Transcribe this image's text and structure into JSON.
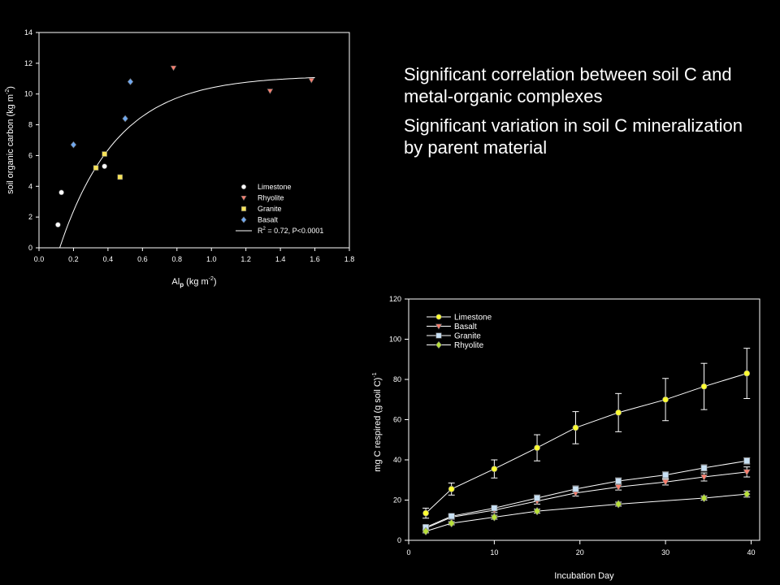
{
  "notes": [
    "Significant correlation between soil C and metal-organic complexes",
    "Significant variation in soil C mineralization by parent material"
  ],
  "chart_data": [
    {
      "type": "scatter",
      "xlabel": "Al",
      "xlabel_sub": "p",
      "xlabel_unit": " (kg m",
      "xlabel_sup": "-2",
      "xlabel_close": ")",
      "ylabel": "soil organic carbon (kg m",
      "ylabel_sup": "-2",
      "ylabel_close": ")",
      "xlim": [
        0,
        1.8
      ],
      "ylim": [
        0,
        14
      ],
      "xticks": [
        "0.0",
        "0.2",
        "0.4",
        "0.6",
        "0.8",
        "1.0",
        "1.2",
        "1.4",
        "1.6",
        "1.8"
      ],
      "yticks": [
        "0",
        "2",
        "4",
        "6",
        "8",
        "10",
        "12",
        "14"
      ],
      "legend_position": "bottom-right",
      "series": [
        {
          "name": "Limestone",
          "marker": "circle",
          "color": "#ffffff",
          "points": [
            [
              0.11,
              1.5
            ],
            [
              0.13,
              3.6
            ],
            [
              0.38,
              5.3
            ]
          ]
        },
        {
          "name": "Rhyolite",
          "marker": "triangle-down",
          "color": "#ff7f6e",
          "points": [
            [
              0.78,
              11.7
            ],
            [
              1.34,
              10.2
            ],
            [
              1.58,
              10.9
            ]
          ]
        },
        {
          "name": "Granite",
          "marker": "square",
          "color": "#f7e35a",
          "points": [
            [
              0.33,
              5.2
            ],
            [
              0.38,
              6.1
            ],
            [
              0.47,
              4.6
            ]
          ]
        },
        {
          "name": "Basalt",
          "marker": "diamond",
          "color": "#6fa8f0",
          "points": [
            [
              0.2,
              6.7
            ],
            [
              0.5,
              8.4
            ],
            [
              0.53,
              10.8
            ]
          ]
        }
      ],
      "fit": {
        "label": "R",
        "label_sup": "2",
        "label_rest": " = 0.72, P<0.0001",
        "asymptote": 11.2,
        "x0": 0.12,
        "rate": 3.0,
        "x_end": 1.6
      }
    },
    {
      "type": "line",
      "xlabel": "Incubation Day",
      "ylabel": "mg C respired (g soil C)",
      "ylabel_sup": "-1",
      "xlim": [
        0,
        41
      ],
      "ylim": [
        0,
        120
      ],
      "xticks": [
        "0",
        "10",
        "20",
        "30",
        "40"
      ],
      "yticks": [
        "0",
        "20",
        "40",
        "60",
        "80",
        "100",
        "120"
      ],
      "legend_position": "top-left",
      "x": [
        2,
        5,
        10,
        15,
        19.5,
        24.5,
        30,
        34.5,
        39.5
      ],
      "series": [
        {
          "name": "Limestone",
          "marker": "circle",
          "color": "#ffff33",
          "values": [
            13.5,
            25.5,
            35.5,
            46,
            56,
            63.5,
            70,
            76.5,
            83
          ],
          "errors": [
            2.5,
            3,
            4.5,
            6.5,
            8,
            9.5,
            10.5,
            11.5,
            12.5
          ]
        },
        {
          "name": "Basalt",
          "marker": "triangle-down",
          "color": "#ff7f6e",
          "values": [
            6,
            11.5,
            15,
            19.5,
            23.5,
            26.5,
            29,
            31.5,
            34
          ],
          "errors": [
            1,
            1,
            1.2,
            1.5,
            1.5,
            1.5,
            1.5,
            2,
            2.5
          ]
        },
        {
          "name": "Granite",
          "marker": "square",
          "color": "#c8e0f4",
          "values": [
            6.5,
            12,
            16,
            21,
            25.5,
            29.5,
            32.5,
            36,
            39.5
          ],
          "errors": [
            1,
            1,
            1.2,
            1.5,
            1.5,
            1.5,
            1.5,
            1.5,
            1.5
          ]
        },
        {
          "name": "Rhyolite",
          "marker": "diamond",
          "color": "#b8e03a",
          "values": [
            4.5,
            8.5,
            11.5,
            14.5,
            null,
            18,
            null,
            21,
            23
          ],
          "errors": [
            0.8,
            0.8,
            1,
            1,
            0,
            1,
            0,
            1,
            1.5
          ]
        }
      ]
    }
  ]
}
